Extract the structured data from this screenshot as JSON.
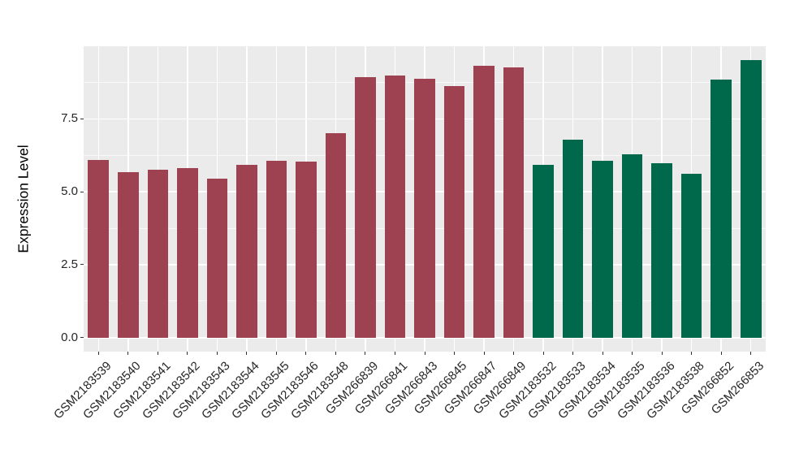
{
  "style": {
    "figure_background": "#ffffff",
    "panel_background": "#ebebeb",
    "grid_color": "#ffffff",
    "tick_color": "#333333",
    "axis_text_color": "#262626",
    "axis_title_color": "#000000"
  },
  "chart_data": {
    "type": "bar",
    "title": "",
    "xlabel": "",
    "ylabel": "Expression Level",
    "categories": [
      "GSM2183539",
      "GSM2183540",
      "GSM2183541",
      "GSM2183542",
      "GSM2183543",
      "GSM2183544",
      "GSM2183545",
      "GSM2183546",
      "GSM2183548",
      "GSM266839",
      "GSM266841",
      "GSM266843",
      "GSM266845",
      "GSM266847",
      "GSM266849",
      "GSM2183532",
      "GSM2183533",
      "GSM2183534",
      "GSM2183535",
      "GSM2183536",
      "GSM2183538",
      "GSM266852",
      "GSM266853"
    ],
    "values": [
      6.1,
      5.68,
      5.75,
      5.81,
      5.45,
      5.92,
      6.06,
      6.03,
      7.0,
      8.94,
      8.98,
      8.87,
      8.62,
      9.31,
      9.27,
      5.93,
      6.8,
      6.07,
      6.29,
      5.97,
      5.63,
      8.85,
      9.51
    ],
    "bar_groups": [
      0,
      0,
      0,
      0,
      0,
      0,
      0,
      0,
      0,
      0,
      0,
      0,
      0,
      0,
      0,
      1,
      1,
      1,
      1,
      1,
      1,
      1,
      1
    ],
    "group_colors": [
      "#9e4252",
      "#00694b"
    ],
    "ylim": [
      -0.48,
      9.99
    ],
    "y_major_ticks": [
      0.0,
      2.5,
      5.0,
      7.5
    ],
    "y_major_tick_labels": [
      "0.0",
      "2.5",
      "5.0",
      "7.5"
    ],
    "y_minor_ticks": [
      1.25,
      3.75,
      6.25,
      8.75
    ],
    "grid": true,
    "legend": "none",
    "bar_width_fraction": 0.7,
    "x_tick_label_rotation": -45
  }
}
